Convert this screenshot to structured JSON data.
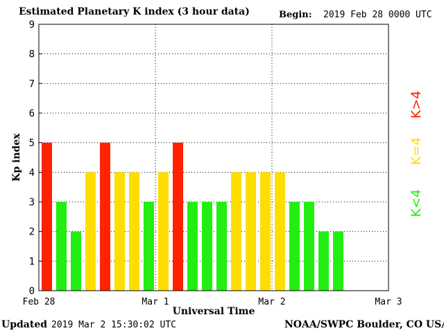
{
  "header": {
    "title": "Estimated Planetary K index (3 hour data)",
    "begin_label": "Begin:",
    "begin_value": "2019 Feb 28 0000 UTC"
  },
  "footer": {
    "updated_label": "Updated",
    "updated_value": "2019 Mar  2 15:30:02 UTC",
    "source": "NOAA/SWPC Boulder, CO USA"
  },
  "legend": [
    {
      "label": "K<4",
      "color": "#22ee11"
    },
    {
      "label": "K=4",
      "color": "#ffdd00"
    },
    {
      "label": "K>4",
      "color": "#ff2200"
    }
  ],
  "chart_data": {
    "type": "bar",
    "title": "Estimated Planetary K index (3 hour data)",
    "xlabel": "Universal Time",
    "ylabel": "Kp index",
    "ylim": [
      0,
      9
    ],
    "yticks": [
      "0",
      "1",
      "2",
      "3",
      "4",
      "5",
      "6",
      "7",
      "8",
      "9"
    ],
    "xticks": [
      "Feb 28",
      "Mar 1",
      "Mar 2",
      "Mar 3"
    ],
    "interval_hours": 3,
    "total_intervals": 24,
    "grid": true,
    "colors": {
      "low": "#22ee11",
      "equal": "#ffdd00",
      "high": "#ff2200"
    },
    "values": [
      5,
      3,
      2,
      4,
      5,
      4,
      4,
      3,
      4,
      5,
      3,
      3,
      3,
      4,
      4,
      4,
      4,
      3,
      3,
      2,
      2
    ]
  }
}
